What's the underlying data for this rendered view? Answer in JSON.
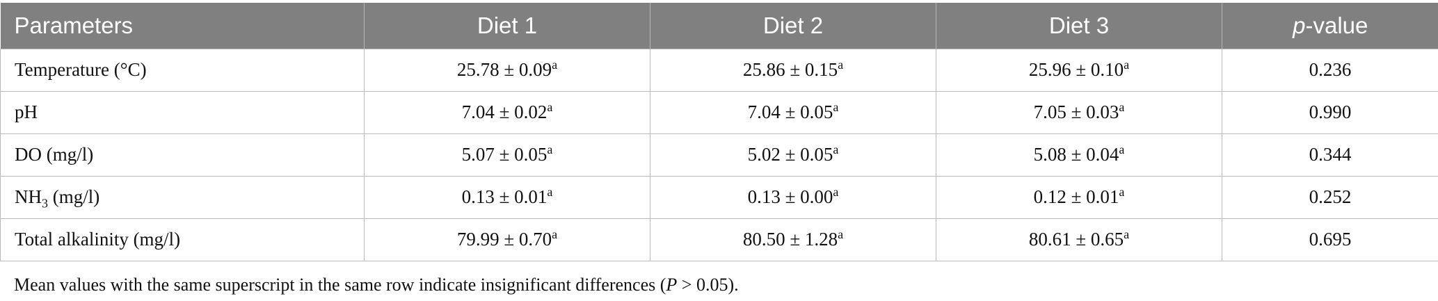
{
  "table": {
    "headers": [
      "Parameters",
      "Diet 1",
      "Diet 2",
      "Diet 3",
      "-value"
    ],
    "header_p_italic": "p",
    "rows": [
      {
        "param": "Temperature (°C)",
        "param_sub": "",
        "param_suffix": "",
        "d1": "25.78 ± 0.09",
        "d1_sup": "a",
        "d2": "25.86 ± 0.15",
        "d2_sup": "a",
        "d3": "25.96 ± 0.10",
        "d3_sup": "a",
        "p": "0.236"
      },
      {
        "param": "pH",
        "param_sub": "",
        "param_suffix": "",
        "d1": "7.04 ± 0.02",
        "d1_sup": "a",
        "d2": "7.04 ± 0.05",
        "d2_sup": "a",
        "d3": "7.05 ± 0.03",
        "d3_sup": "a",
        "p": "0.990"
      },
      {
        "param": "DO (mg/l)",
        "param_sub": "",
        "param_suffix": "",
        "d1": "5.07 ± 0.05",
        "d1_sup": "a",
        "d2": "5.02 ± 0.05",
        "d2_sup": "a",
        "d3": "5.08 ± 0.04",
        "d3_sup": "a",
        "p": "0.344"
      },
      {
        "param": "NH",
        "param_sub": "3",
        "param_suffix": " (mg/l)",
        "d1": "0.13 ± 0.01",
        "d1_sup": "a",
        "d2": "0.13 ± 0.00",
        "d2_sup": "a",
        "d3": "0.12 ± 0.01",
        "d3_sup": "a",
        "p": "0.252"
      },
      {
        "param": "Total alkalinity (mg/l)",
        "param_sub": "",
        "param_suffix": "",
        "d1": "79.99 ± 0.70",
        "d1_sup": "a",
        "d2": "80.50 ± 1.28",
        "d2_sup": "a",
        "d3": "80.61 ± 0.65",
        "d3_sup": "a",
        "p": "0.695"
      }
    ]
  },
  "footnote": {
    "before": "Mean values with the same superscript in the same row indicate insignificant differences (",
    "italic": "P",
    "after": " > 0.05)."
  }
}
